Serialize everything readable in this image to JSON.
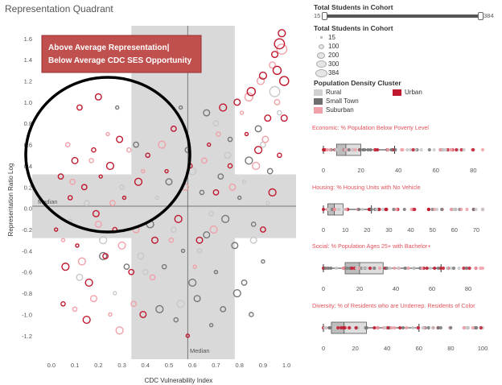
{
  "title": "Representation Quadrant",
  "annotation": {
    "line1": "Above Average Representation|",
    "line2": "Below Average CDC SES Opportunity",
    "box_color": "#c0504d"
  },
  "scatter": {
    "xlabel": "CDC Vulnerability Index",
    "ylabel": "Representation Ratio Log",
    "x_ticks": [
      "0.0",
      "0.1",
      "0.2",
      "0.3",
      "0.4",
      "0.5",
      "0.6",
      "0.7",
      "0.8",
      "0.9",
      "1.0"
    ],
    "y_ticks": [
      "1.6",
      "1.4",
      "1.2",
      "1.0",
      "0.8",
      "0.6",
      "0.4",
      "0.2",
      "0.0",
      "-0.2",
      "-0.4",
      "-0.6",
      "-0.8",
      "-1.0",
      "-1.2"
    ],
    "median_x_label": "Median",
    "median_y_label": "Median"
  },
  "chart_data": {
    "type": "scatter",
    "title": "Representation Quadrant",
    "xlabel": "CDC Vulnerability Index",
    "ylabel": "Representation Ratio Log",
    "xlim": [
      -0.02,
      1.02
    ],
    "ylim": [
      -1.3,
      1.72
    ],
    "median_x": 0.58,
    "median_y": 0.02,
    "band_x": [
      0.34,
      0.78
    ],
    "band_y": [
      -0.28,
      0.32
    ],
    "series": [
      {
        "name": "Rural",
        "color": "#c8c8c8",
        "points": [
          [
            0.08,
            -0.12
          ],
          [
            0.15,
            0.05
          ],
          [
            0.22,
            -0.3
          ],
          [
            0.3,
            0.2
          ],
          [
            0.38,
            -0.45
          ],
          [
            0.45,
            0.1
          ],
          [
            0.52,
            -0.2
          ],
          [
            0.6,
            0.35
          ],
          [
            0.68,
            -0.05
          ],
          [
            0.75,
            0.5
          ],
          [
            0.82,
            0.25
          ],
          [
            0.9,
            0.6
          ],
          [
            0.95,
            1.1
          ],
          [
            0.97,
            0.9
          ],
          [
            0.12,
            -0.65
          ],
          [
            0.27,
            -0.8
          ],
          [
            0.4,
            -0.6
          ],
          [
            0.55,
            -0.9
          ],
          [
            0.63,
            -0.4
          ],
          [
            0.86,
            -0.3
          ],
          [
            0.92,
            0.05
          ],
          [
            0.7,
            0.8
          ]
        ]
      },
      {
        "name": "Small Town",
        "color": "#777777",
        "points": [
          [
            0.28,
            0.95
          ],
          [
            0.36,
            0.6
          ],
          [
            0.42,
            -0.15
          ],
          [
            0.48,
            -0.55
          ],
          [
            0.5,
            0.25
          ],
          [
            0.56,
            -0.4
          ],
          [
            0.58,
            0.55
          ],
          [
            0.6,
            -0.7
          ],
          [
            0.64,
            0.15
          ],
          [
            0.66,
            -0.25
          ],
          [
            0.7,
            -0.6
          ],
          [
            0.72,
            0.3
          ],
          [
            0.74,
            -0.1
          ],
          [
            0.76,
            0.65
          ],
          [
            0.78,
            -0.35
          ],
          [
            0.8,
            0.1
          ],
          [
            0.82,
            -0.7
          ],
          [
            0.84,
            0.45
          ],
          [
            0.86,
            -0.15
          ],
          [
            0.88,
            0.75
          ],
          [
            0.9,
            -0.5
          ],
          [
            0.93,
            0.35
          ],
          [
            0.46,
            -0.95
          ],
          [
            0.53,
            -1.05
          ],
          [
            0.62,
            -0.85
          ],
          [
            0.68,
            -1.1
          ],
          [
            0.73,
            -0.95
          ],
          [
            0.79,
            -0.8
          ],
          [
            0.85,
            -1.0
          ],
          [
            0.66,
            0.9
          ],
          [
            0.55,
            0.95
          ],
          [
            0.32,
            -0.55
          ],
          [
            0.22,
            -0.45
          ]
        ]
      },
      {
        "name": "Suburban",
        "color": "#f0a0a8",
        "points": [
          [
            0.05,
            -0.3
          ],
          [
            0.09,
            0.25
          ],
          [
            0.13,
            -0.5
          ],
          [
            0.17,
            0.45
          ],
          [
            0.2,
            -0.15
          ],
          [
            0.24,
            0.7
          ],
          [
            0.26,
            0.05
          ],
          [
            0.3,
            -0.35
          ],
          [
            0.33,
            0.55
          ],
          [
            0.36,
            -0.2
          ],
          [
            0.39,
            0.35
          ],
          [
            0.43,
            -0.65
          ],
          [
            0.47,
            0.6
          ],
          [
            0.51,
            -0.3
          ],
          [
            0.57,
            0.2
          ],
          [
            0.61,
            -0.55
          ],
          [
            0.65,
            0.45
          ],
          [
            0.69,
            -0.2
          ],
          [
            0.71,
            0.7
          ],
          [
            0.77,
            0.2
          ],
          [
            0.81,
            0.9
          ],
          [
            0.84,
            1.05
          ],
          [
            0.87,
            0.4
          ],
          [
            0.89,
            1.2
          ],
          [
            0.91,
            0.65
          ],
          [
            0.94,
            1.35
          ],
          [
            0.96,
            1.0
          ],
          [
            0.98,
            1.5
          ],
          [
            0.1,
            -0.95
          ],
          [
            0.18,
            -0.85
          ],
          [
            0.25,
            -1.0
          ],
          [
            0.35,
            -0.9
          ],
          [
            0.29,
            -1.15
          ],
          [
            0.07,
            0.6
          ]
        ]
      },
      {
        "name": "Urban",
        "color": "#c0182e",
        "points": [
          [
            0.02,
            -0.2
          ],
          [
            0.04,
            0.3
          ],
          [
            0.06,
            -0.55
          ],
          [
            0.08,
            0.1
          ],
          [
            0.1,
            0.45
          ],
          [
            0.11,
            -0.35
          ],
          [
            0.14,
            0.2
          ],
          [
            0.16,
            -0.7
          ],
          [
            0.18,
            0.55
          ],
          [
            0.19,
            -0.05
          ],
          [
            0.21,
            0.3
          ],
          [
            0.23,
            -0.45
          ],
          [
            0.25,
            0.4
          ],
          [
            0.27,
            -0.2
          ],
          [
            0.29,
            0.65
          ],
          [
            0.31,
            0.1
          ],
          [
            0.34,
            -0.6
          ],
          [
            0.37,
            0.25
          ],
          [
            0.41,
            0.5
          ],
          [
            0.44,
            -0.3
          ],
          [
            0.49,
            0.35
          ],
          [
            0.52,
            0.75
          ],
          [
            0.54,
            -0.1
          ],
          [
            0.59,
            0.4
          ],
          [
            0.63,
            -0.3
          ],
          [
            0.67,
            0.6
          ],
          [
            0.7,
            0.15
          ],
          [
            0.73,
            0.95
          ],
          [
            0.76,
            0.4
          ],
          [
            0.79,
            1.0
          ],
          [
            0.83,
            0.7
          ],
          [
            0.85,
            1.1
          ],
          [
            0.88,
            0.55
          ],
          [
            0.9,
            1.25
          ],
          [
            0.92,
            0.85
          ],
          [
            0.95,
            1.45
          ],
          [
            0.96,
            1.3
          ],
          [
            0.97,
            1.55
          ],
          [
            0.98,
            1.65
          ],
          [
            0.99,
            1.2
          ],
          [
            0.2,
            1.05
          ],
          [
            0.12,
            0.95
          ],
          [
            0.15,
            -1.05
          ],
          [
            0.05,
            -0.9
          ],
          [
            0.39,
            -1.0
          ],
          [
            0.58,
            -1.2
          ],
          [
            0.9,
            -0.2
          ],
          [
            0.94,
            0.15
          ],
          [
            0.97,
            0.5
          ],
          [
            0.99,
            0.85
          ]
        ]
      }
    ]
  },
  "filters": {
    "cohort_slider": {
      "label": "Total Students in Cohort",
      "min": "15",
      "max": "384",
      "fill_fraction": 1.0
    },
    "size_legend": {
      "label": "Total Students in Cohort",
      "items": [
        "15",
        "100",
        "200",
        "300",
        "384"
      ]
    },
    "cluster_legend": {
      "label": "Population Density Cluster",
      "items": [
        {
          "label": "Rural",
          "color": "#d0d0d0"
        },
        {
          "label": "Urban",
          "color": "#c0182e"
        },
        {
          "label": "Small Town",
          "color": "#6e6e6e"
        },
        {
          "label": "Suburban",
          "color": "#f0a0a8"
        }
      ]
    }
  },
  "boxplots": [
    {
      "title": "Economic: % Population Below Poverty Level",
      "ticks": [
        "0",
        "20",
        "40",
        "60",
        "80"
      ],
      "max": 85,
      "whisker": [
        0,
        38
      ],
      "box": [
        7,
        20
      ],
      "median": 12
    },
    {
      "title": "Housing: % Housing Units with No Vehicle",
      "ticks": [
        "0",
        "10",
        "20",
        "30",
        "40",
        "50",
        "60",
        "70"
      ],
      "max": 73,
      "whisker": [
        0,
        22
      ],
      "box": [
        2,
        9
      ],
      "median": 5
    },
    {
      "title": "Social: % Population Ages 25+ with Bachelor+",
      "ticks": [
        "0",
        "20",
        "40",
        "60",
        "80"
      ],
      "max": 88,
      "whisker": [
        0,
        65
      ],
      "box": [
        12,
        33
      ],
      "median": 20
    },
    {
      "title": "Diversity: % of Residents who are Underrep. Residents of Color",
      "ticks": [
        "0",
        "20",
        "40",
        "60",
        "80",
        "100"
      ],
      "max": 100,
      "whisker": [
        0,
        60
      ],
      "box": [
        5,
        27
      ],
      "median": 13
    }
  ]
}
